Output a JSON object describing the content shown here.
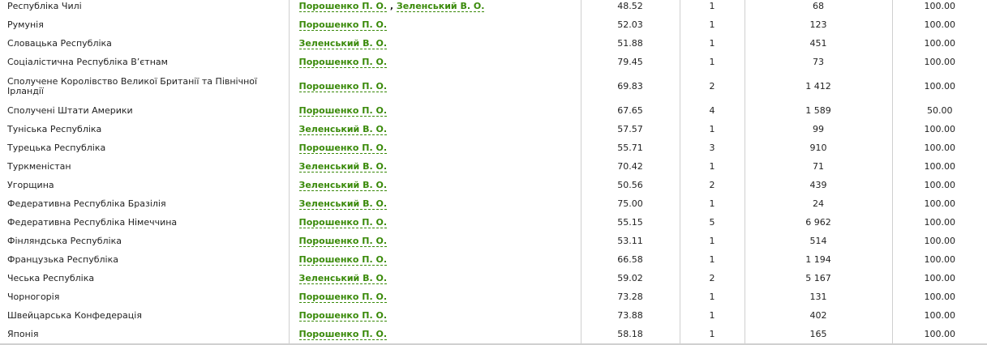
{
  "colors": {
    "link": "#3a8a0a",
    "text": "#222222",
    "border": "#cfcfcf"
  },
  "rows": [
    {
      "country": "Республіка Чилі",
      "candidates": [
        "Порошенко П. О.",
        "Зеленський В. О."
      ],
      "turnout": "48.52",
      "stations": "1",
      "voters": "68",
      "processed": "100.00"
    },
    {
      "country": "Румунія",
      "candidates": [
        "Порошенко П. О."
      ],
      "turnout": "52.03",
      "stations": "1",
      "voters": "123",
      "processed": "100.00"
    },
    {
      "country": "Словацька Республіка",
      "candidates": [
        "Зеленський В. О."
      ],
      "turnout": "51.88",
      "stations": "1",
      "voters": "451",
      "processed": "100.00"
    },
    {
      "country": "Соціалістична Республіка В’єтнам",
      "candidates": [
        "Порошенко П. О."
      ],
      "turnout": "79.45",
      "stations": "1",
      "voters": "73",
      "processed": "100.00"
    },
    {
      "country": "Сполучене Королівство Великої Британії та Північної Ірландії",
      "candidates": [
        "Порошенко П. О."
      ],
      "turnout": "69.83",
      "stations": "2",
      "voters": "1 412",
      "processed": "100.00",
      "tall": true
    },
    {
      "country": "Сполучені Штати Америки",
      "candidates": [
        "Порошенко П. О."
      ],
      "turnout": "67.65",
      "stations": "4",
      "voters": "1 589",
      "processed": "50.00"
    },
    {
      "country": "Туніська Республіка",
      "candidates": [
        "Зеленський В. О."
      ],
      "turnout": "57.57",
      "stations": "1",
      "voters": "99",
      "processed": "100.00"
    },
    {
      "country": "Турецька Республіка",
      "candidates": [
        "Порошенко П. О."
      ],
      "turnout": "55.71",
      "stations": "3",
      "voters": "910",
      "processed": "100.00"
    },
    {
      "country": "Туркменістан",
      "candidates": [
        "Зеленський В. О."
      ],
      "turnout": "70.42",
      "stations": "1",
      "voters": "71",
      "processed": "100.00"
    },
    {
      "country": "Угорщина",
      "candidates": [
        "Зеленський В. О."
      ],
      "turnout": "50.56",
      "stations": "2",
      "voters": "439",
      "processed": "100.00"
    },
    {
      "country": "Федеративна Республіка Бразілія",
      "candidates": [
        "Зеленський В. О."
      ],
      "turnout": "75.00",
      "stations": "1",
      "voters": "24",
      "processed": "100.00"
    },
    {
      "country": "Федеративна Республіка Німеччина",
      "candidates": [
        "Порошенко П. О."
      ],
      "turnout": "55.15",
      "stations": "5",
      "voters": "6 962",
      "processed": "100.00"
    },
    {
      "country": "Фінляндська Республіка",
      "candidates": [
        "Порошенко П. О."
      ],
      "turnout": "53.11",
      "stations": "1",
      "voters": "514",
      "processed": "100.00"
    },
    {
      "country": "Французька Республіка",
      "candidates": [
        "Порошенко П. О."
      ],
      "turnout": "66.58",
      "stations": "1",
      "voters": "1 194",
      "processed": "100.00"
    },
    {
      "country": "Чеська Республіка",
      "candidates": [
        "Зеленський В. О."
      ],
      "turnout": "59.02",
      "stations": "2",
      "voters": "5 167",
      "processed": "100.00"
    },
    {
      "country": "Чорногорія",
      "candidates": [
        "Порошенко П. О."
      ],
      "turnout": "73.28",
      "stations": "1",
      "voters": "131",
      "processed": "100.00"
    },
    {
      "country": "Швейцарська Конфедерація",
      "candidates": [
        "Порошенко П. О."
      ],
      "turnout": "73.88",
      "stations": "1",
      "voters": "402",
      "processed": "100.00"
    },
    {
      "country": "Японія",
      "candidates": [
        "Порошенко П. О."
      ],
      "turnout": "58.18",
      "stations": "1",
      "voters": "165",
      "processed": "100.00"
    }
  ]
}
